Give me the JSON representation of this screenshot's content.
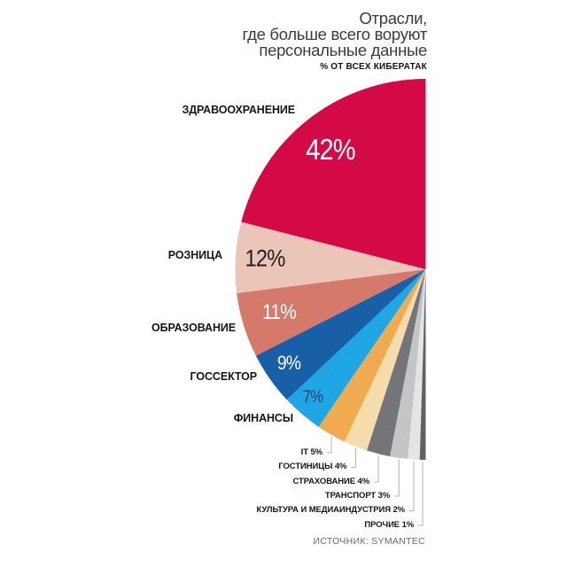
{
  "header": {
    "title_lines": [
      "Отрасли,",
      "где больше всего воруют",
      "персональные данные"
    ],
    "subtitle": "% ОТ ВСЕХ КИБЕРАТАК"
  },
  "footer": {
    "source": "ИСТОЧНИК: SYMANTEC"
  },
  "chart_data": {
    "type": "pie",
    "variant": "semicircle-fan-opening-left",
    "title": "Отрасли, где больше всего воруют персональные данные",
    "subtitle": "% ОТ ВСЕХ КИБЕРАТАК",
    "source": "ИСТОЧНИК: SYMANTEC",
    "unit": "%",
    "total": 100,
    "legend": "none",
    "categories": [
      "ЗДРАВООХРАНЕНИЕ",
      "РОЗНИЦА",
      "ОБРАЗОВАНИЕ",
      "ГОССЕКТОР",
      "ФИНАНСЫ",
      "IT",
      "ГОСТИНИЦЫ",
      "СТРАХОВАНИЕ",
      "ТРАНСПОРТ",
      "КУЛЬТУРА И МЕДИАИНДУСТРИЯ",
      "ПРОЧИЕ"
    ],
    "values": [
      42,
      12,
      11,
      9,
      7,
      5,
      4,
      4,
      3,
      2,
      1
    ],
    "slices": [
      {
        "label": "ЗДРАВООХРАНЕНИЕ",
        "value": 42,
        "color": "#d40a46",
        "value_color": "#ffffff"
      },
      {
        "label": "РОЗНИЦА",
        "value": 12,
        "color": "#ebc5b8",
        "value_color": "#1f1f1f"
      },
      {
        "label": "ОБРАЗОВАНИЕ",
        "value": 11,
        "color": "#d5796b",
        "value_color": "#ffffff"
      },
      {
        "label": "ГОССЕКТОР",
        "value": 9,
        "color": "#175fa6",
        "value_color": "#ffffff"
      },
      {
        "label": "ФИНАНСЫ",
        "value": 7,
        "color": "#1ea6e5",
        "value_color": "#1c3c63"
      },
      {
        "label": "IT",
        "value": 5,
        "color": "#f0ab50"
      },
      {
        "label": "ГОСТИНИЦЫ",
        "value": 4,
        "color": "#f6dcab"
      },
      {
        "label": "СТРАХОВАНИЕ",
        "value": 4,
        "color": "#747578"
      },
      {
        "label": "ТРАНСПОРТ",
        "value": 3,
        "color": "#c4c5c7"
      },
      {
        "label": "КУЛЬТУРА И МЕДИАИНДУСТРИЯ",
        "value": 2,
        "color": "#e3e4e6"
      },
      {
        "label": "ПРОЧИЕ",
        "value": 1,
        "color": "#5f6063"
      }
    ],
    "leader_line_color": "#b3b3b3"
  }
}
